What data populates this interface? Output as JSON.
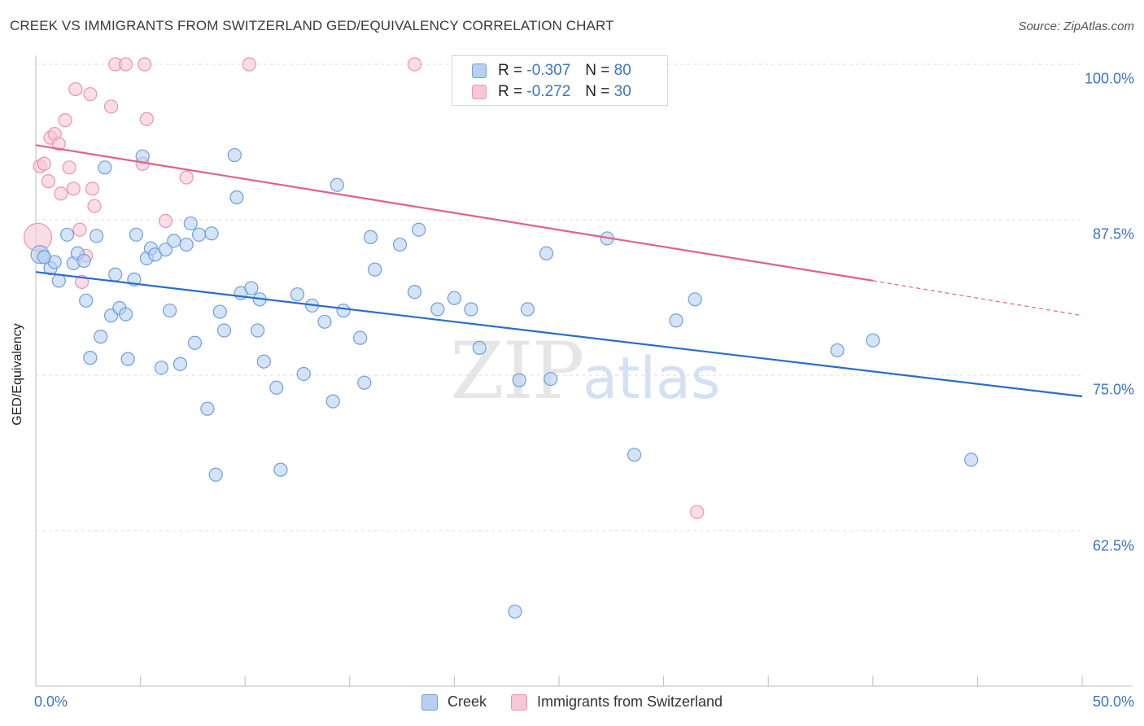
{
  "header": {
    "title": "CREEK VS IMMIGRANTS FROM SWITZERLAND GED/EQUIVALENCY CORRELATION CHART",
    "source": "Source: ZipAtlas.com"
  },
  "watermark": {
    "zip": "ZIP",
    "atlas": "atlas"
  },
  "legend_top": [
    {
      "r_label": "R =",
      "r_value": "-0.307",
      "n_label": "N =",
      "n_value": "80"
    },
    {
      "r_label": "R =",
      "r_value": "-0.272",
      "n_label": "N =",
      "n_value": "30"
    }
  ],
  "legend_bottom": [
    {
      "label": "Creek"
    },
    {
      "label": "Immigrants from Switzerland"
    }
  ],
  "axis": {
    "ylabel": "GED/Equivalency",
    "yticks": [
      "100.0%",
      "87.5%",
      "75.0%",
      "62.5%"
    ],
    "xticks": [
      "0.0%",
      "50.0%"
    ]
  },
  "colors": {
    "creek_fill": "#b8d0f0",
    "creek_stroke": "#6f9fdc",
    "creek_line": "#2a6dc9",
    "swiss_fill": "#f7c7d5",
    "swiss_stroke": "#ec94ae",
    "swiss_line": "#e0608a",
    "tick_text": "#3b73c9"
  },
  "chart_data": {
    "type": "scatter",
    "xlim": [
      0,
      50
    ],
    "ylim": [
      51,
      102
    ],
    "series": [
      {
        "name": "Creek",
        "points": [
          [
            0.2,
            84.7
          ],
          [
            0.4,
            84.5
          ],
          [
            0.7,
            83.6
          ],
          [
            0.9,
            84.1
          ],
          [
            1.1,
            82.6
          ],
          [
            1.5,
            86.3
          ],
          [
            1.8,
            84.0
          ],
          [
            2.0,
            84.8
          ],
          [
            2.3,
            84.2
          ],
          [
            2.4,
            81.0
          ],
          [
            2.6,
            76.4
          ],
          [
            2.9,
            86.2
          ],
          [
            3.1,
            78.1
          ],
          [
            3.3,
            91.7
          ],
          [
            3.6,
            79.8
          ],
          [
            3.8,
            83.1
          ],
          [
            4.0,
            80.4
          ],
          [
            4.3,
            79.9
          ],
          [
            4.4,
            76.3
          ],
          [
            4.7,
            82.7
          ],
          [
            4.8,
            86.3
          ],
          [
            5.1,
            92.6
          ],
          [
            5.3,
            84.4
          ],
          [
            5.5,
            85.2
          ],
          [
            5.7,
            84.7
          ],
          [
            6.0,
            75.6
          ],
          [
            6.2,
            85.1
          ],
          [
            6.4,
            80.2
          ],
          [
            6.6,
            85.8
          ],
          [
            6.9,
            75.9
          ],
          [
            7.2,
            85.5
          ],
          [
            7.4,
            87.2
          ],
          [
            7.6,
            77.6
          ],
          [
            7.8,
            86.3
          ],
          [
            8.2,
            72.3
          ],
          [
            8.4,
            86.4
          ],
          [
            8.6,
            67.0
          ],
          [
            8.8,
            80.1
          ],
          [
            9.0,
            78.6
          ],
          [
            9.5,
            92.7
          ],
          [
            9.6,
            89.3
          ],
          [
            9.8,
            81.6
          ],
          [
            10.3,
            82.0
          ],
          [
            10.6,
            78.6
          ],
          [
            10.7,
            81.1
          ],
          [
            10.9,
            76.1
          ],
          [
            11.5,
            74.0
          ],
          [
            11.7,
            67.4
          ],
          [
            12.5,
            81.5
          ],
          [
            12.8,
            75.1
          ],
          [
            13.2,
            80.6
          ],
          [
            13.8,
            79.3
          ],
          [
            14.2,
            72.9
          ],
          [
            14.4,
            90.3
          ],
          [
            14.7,
            80.2
          ],
          [
            15.5,
            78.0
          ],
          [
            15.7,
            74.4
          ],
          [
            16.0,
            86.1
          ],
          [
            16.2,
            83.5
          ],
          [
            17.4,
            85.5
          ],
          [
            18.1,
            81.7
          ],
          [
            18.3,
            86.7
          ],
          [
            19.2,
            80.3
          ],
          [
            20.0,
            81.2
          ],
          [
            20.8,
            80.3
          ],
          [
            21.2,
            77.2
          ],
          [
            22.4,
            100.0
          ],
          [
            22.9,
            56.0
          ],
          [
            23.1,
            74.6
          ],
          [
            23.5,
            80.3
          ],
          [
            24.4,
            84.8
          ],
          [
            24.6,
            74.7
          ],
          [
            27.3,
            86.0
          ],
          [
            28.6,
            68.6
          ],
          [
            30.6,
            79.4
          ],
          [
            31.5,
            81.1
          ],
          [
            38.3,
            77.0
          ],
          [
            40.0,
            77.8
          ],
          [
            44.7,
            68.2
          ],
          [
            0.4,
            84.5
          ]
        ],
        "trend": {
          "x": [
            0,
            50
          ],
          "y": [
            83.3,
            73.3
          ]
        }
      },
      {
        "name": "Immigrants from Switzerland",
        "points": [
          [
            0.1,
            86.1
          ],
          [
            0.2,
            91.8
          ],
          [
            0.4,
            92.0
          ],
          [
            0.6,
            90.6
          ],
          [
            0.7,
            94.1
          ],
          [
            0.9,
            94.4
          ],
          [
            1.1,
            93.6
          ],
          [
            1.2,
            89.6
          ],
          [
            1.4,
            95.5
          ],
          [
            1.6,
            91.7
          ],
          [
            1.8,
            90.0
          ],
          [
            1.9,
            98.0
          ],
          [
            2.1,
            86.7
          ],
          [
            2.2,
            82.5
          ],
          [
            2.4,
            84.6
          ],
          [
            2.6,
            97.6
          ],
          [
            2.7,
            90.0
          ],
          [
            2.8,
            88.6
          ],
          [
            3.6,
            96.6
          ],
          [
            3.8,
            100.0
          ],
          [
            4.3,
            100.0
          ],
          [
            5.1,
            92.0
          ],
          [
            5.2,
            100.0
          ],
          [
            5.3,
            95.6
          ],
          [
            6.2,
            87.4
          ],
          [
            7.2,
            90.9
          ],
          [
            10.2,
            100.0
          ],
          [
            18.1,
            100.0
          ],
          [
            24.4,
            100.0
          ],
          [
            31.6,
            64.0
          ]
        ],
        "trend": {
          "x": [
            0,
            40
          ],
          "y": [
            93.5,
            82.6
          ]
        },
        "trend_extrapolated": {
          "x": [
            40,
            50
          ],
          "y": [
            82.6,
            79.8
          ]
        }
      }
    ]
  }
}
